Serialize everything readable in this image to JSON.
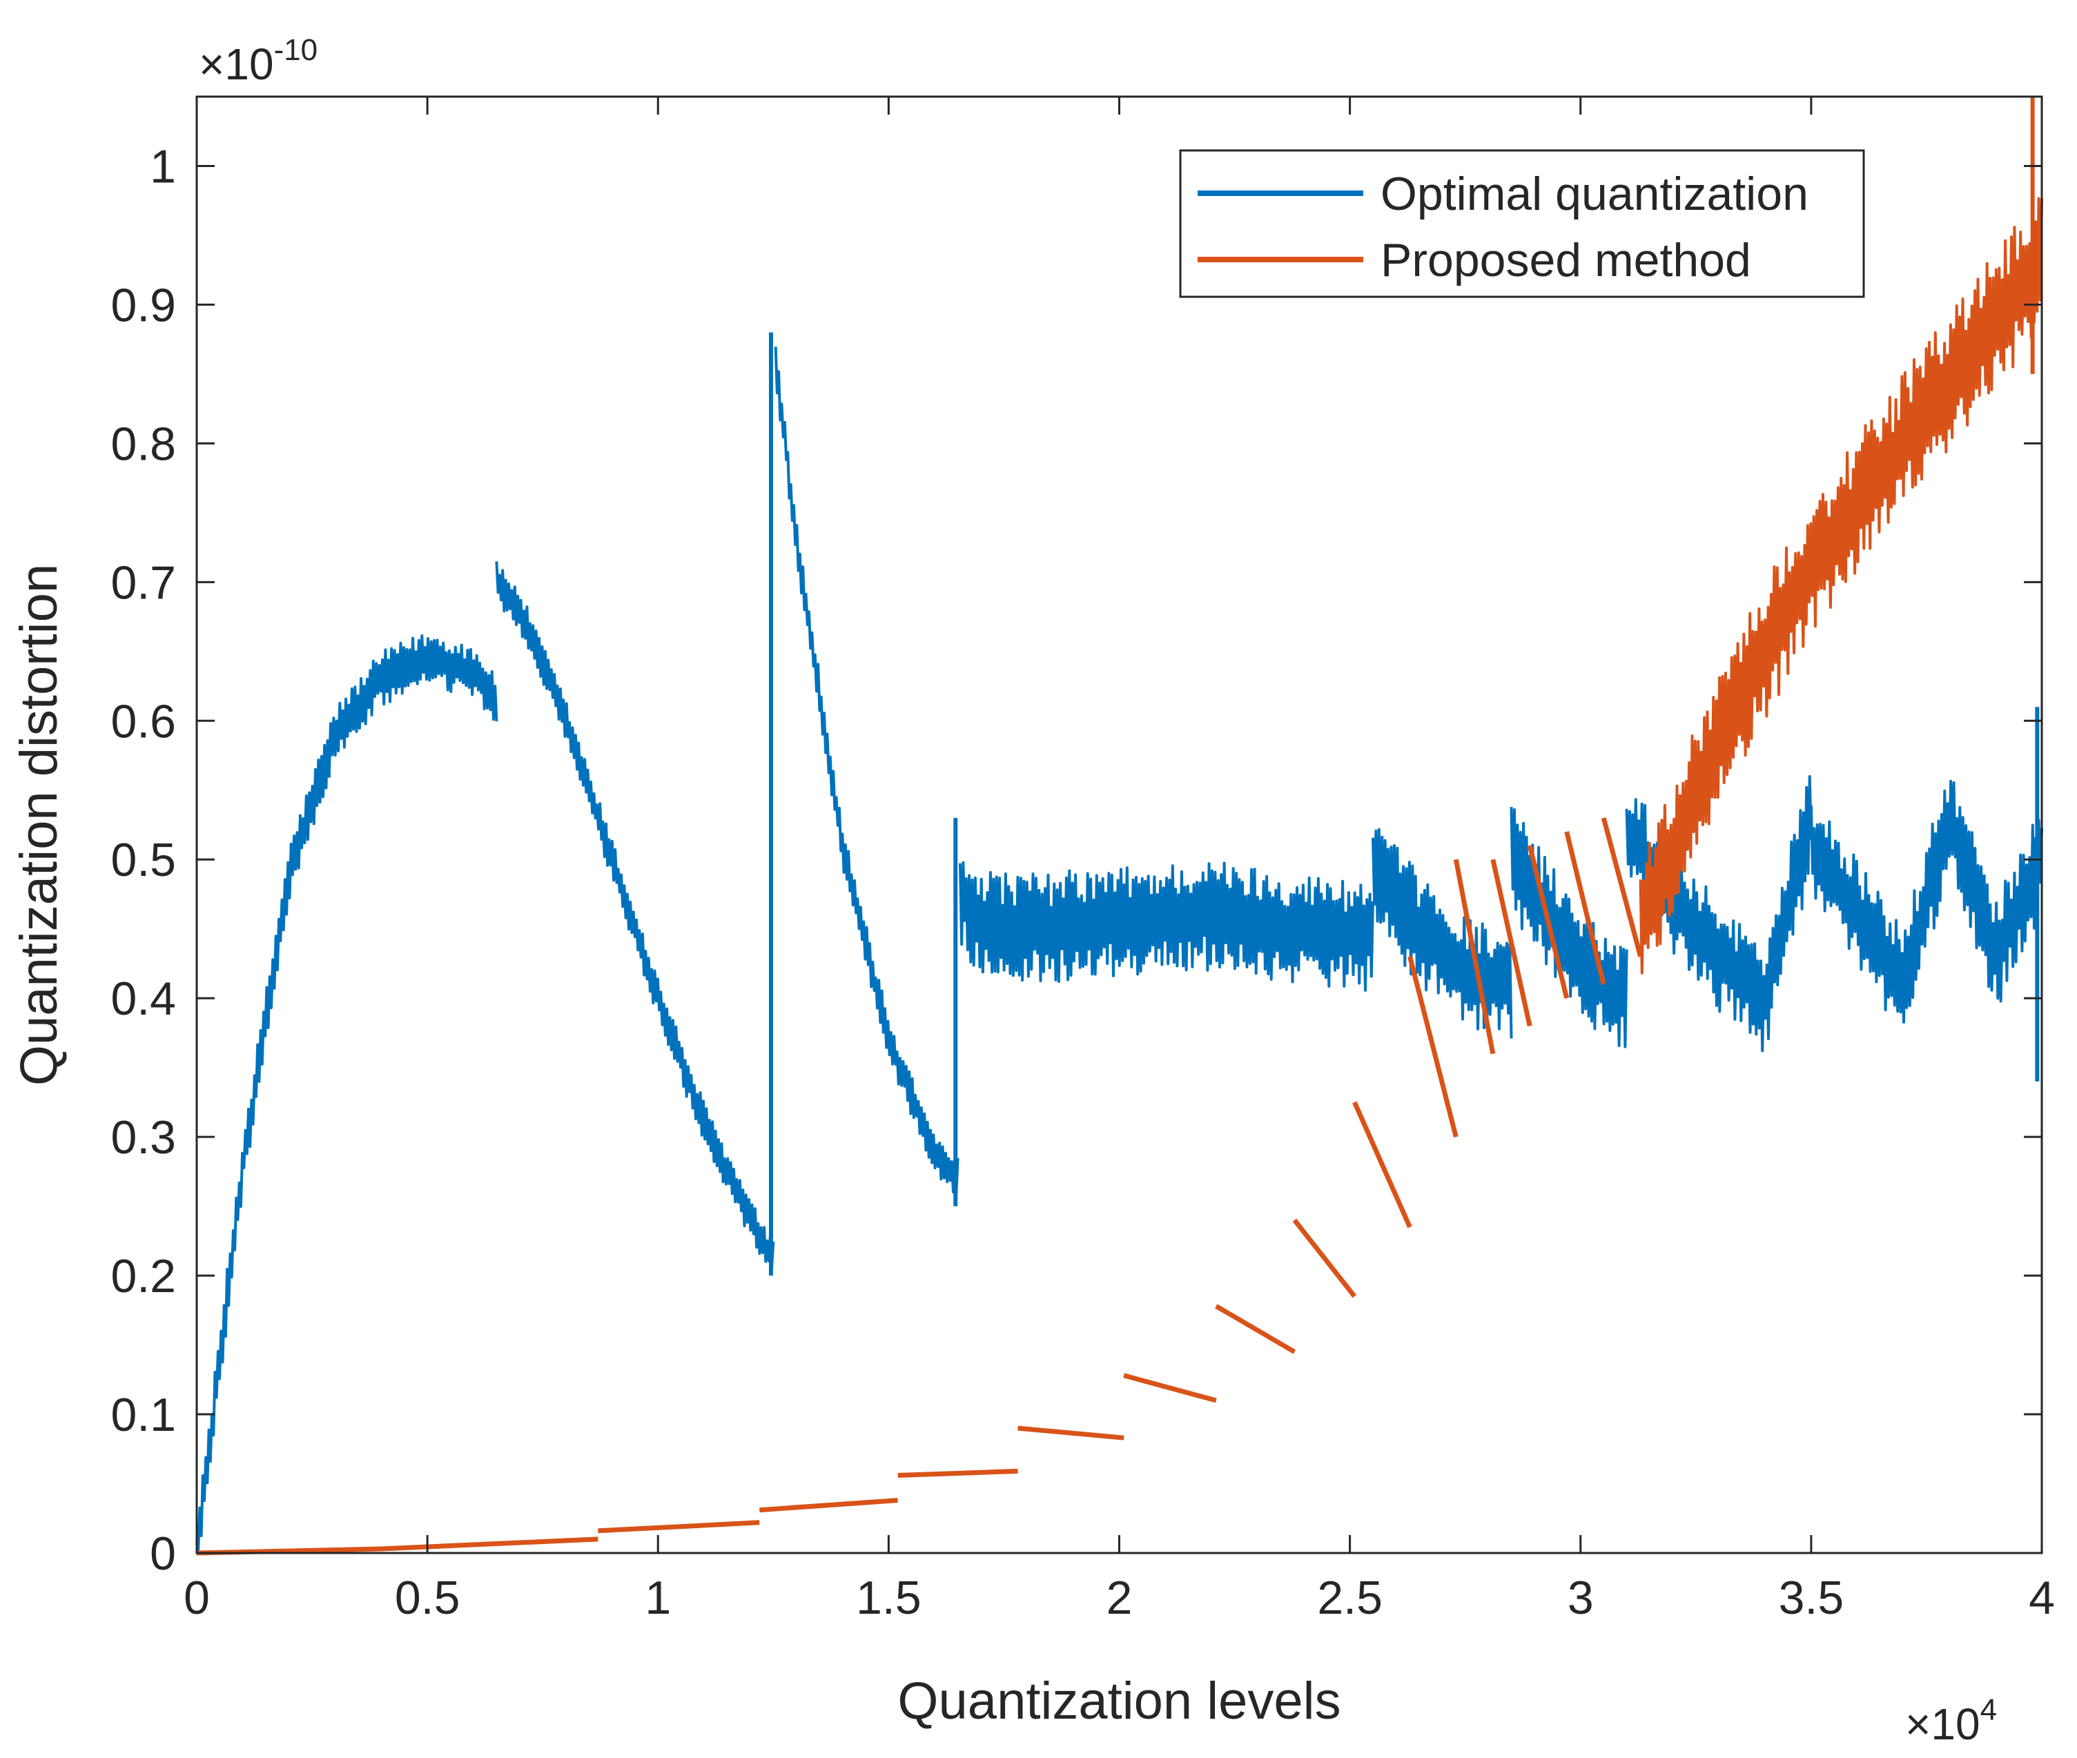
{
  "chart_data": {
    "type": "line",
    "xlabel": "Quantization levels",
    "ylabel": "Quantization distortion",
    "x_scale_label": {
      "base": "×10",
      "exp": "4"
    },
    "y_scale_label": {
      "base": "×10",
      "exp": "-10"
    },
    "xlim": [
      0,
      40000
    ],
    "ylim": [
      0,
      1.05e-10
    ],
    "xticks": [
      0,
      5000,
      10000,
      15000,
      20000,
      25000,
      30000,
      35000,
      40000
    ],
    "xtick_labels": [
      "0",
      "0.5",
      "1",
      "1.5",
      "2",
      "2.5",
      "3",
      "3.5",
      "4"
    ],
    "yticks": [
      0,
      1e-11,
      2e-11,
      3e-11,
      4e-11,
      5e-11,
      6e-11,
      7e-11,
      8e-11,
      9e-11,
      1e-10
    ],
    "ytick_labels": [
      "0",
      "0.1",
      "0.2",
      "0.3",
      "0.4",
      "0.5",
      "0.6",
      "0.7",
      "0.8",
      "0.9",
      "1"
    ],
    "legend_position": "top-right",
    "series": [
      {
        "name": "Optimal quantization",
        "color": "#0072BD",
        "band_segments": [
          {
            "x": [
              0,
              1000,
              2000,
              3000,
              4000,
              5000,
              6000,
              6500
            ],
            "y_mid": [
              0.0,
              2.8e-11,
              4.9e-11,
              5.9e-11,
              6.3e-11,
              6.45e-11,
              6.35e-11,
              6.15e-11
            ],
            "half_width": 2e-12
          },
          {
            "x": [
              6500,
              7000,
              8000,
              9000,
              10000,
              11000,
              12000,
              12500
            ],
            "y_mid": [
              7e-11,
              6.8e-11,
              6e-11,
              5e-11,
              4e-11,
              3.1e-11,
              2.4e-11,
              2.1e-11
            ],
            "half_width": 1.5e-12
          },
          {
            "x": [
              12550,
              13000,
              14000,
              15000,
              16000,
              16500
            ],
            "y_mid": [
              8.6e-11,
              7.3e-11,
              5.1e-11,
              3.7e-11,
              2.9e-11,
              2.7e-11
            ],
            "half_width": 1.5e-12
          },
          {
            "x": [
              16550,
              17000,
              18000,
              20000,
              22000,
              24000,
              25500
            ],
            "y_mid": [
              4.75e-11,
              4.55e-11,
              4.5e-11,
              4.55e-11,
              4.6e-11,
              4.5e-11,
              4.45e-11
            ],
            "half_width": 4e-12
          },
          {
            "x": [
              25500,
              26500,
              27500,
              28500
            ],
            "y_mid": [
              4.9e-11,
              4.5e-11,
              4.2e-11,
              4.1e-11
            ],
            "half_width": 4e-12
          },
          {
            "x": [
              28500,
              29500,
              30500,
              31000
            ],
            "y_mid": [
              5e-11,
              4.5e-11,
              4.1e-11,
              4e-11
            ],
            "half_width": 4e-12
          },
          {
            "x": [
              31000,
              32000,
              33000,
              34000,
              35000
            ],
            "y_mid": [
              5.2e-11,
              4.7e-11,
              4.3e-11,
              4e-11,
              5.3e-11
            ],
            "half_width": 4e-12
          },
          {
            "x": [
              35000,
              36000,
              37000,
              38000,
              39000,
              40000
            ],
            "y_mid": [
              5.1e-11,
              4.6e-11,
              4.1e-11,
              5.3e-11,
              4.3e-11,
              5e-11
            ],
            "half_width": 4e-12
          }
        ],
        "spikes": [
          {
            "x": 12450,
            "y": [
              2e-11,
              8.8e-11
            ]
          },
          {
            "x": 16450,
            "y": [
              2.5e-11,
              5.3e-11
            ]
          },
          {
            "x": 39900,
            "y": [
              3.4e-11,
              6.1e-11
            ]
          }
        ]
      },
      {
        "name": "Proposed method",
        "color": "#D95319",
        "steps": [
          {
            "x": [
              0,
              4000,
              8700
            ],
            "y": [
              0.0,
              3e-13,
              1e-12
            ]
          },
          {
            "x": [
              8700,
              12200
            ],
            "y": [
              1.6e-12,
              2.2e-12
            ]
          },
          {
            "x": [
              12200,
              15200
            ],
            "y": [
              3.1e-12,
              3.8e-12
            ]
          },
          {
            "x": [
              15200,
              17800
            ],
            "y": [
              5.6e-12,
              5.9e-12
            ]
          },
          {
            "x": [
              17800,
              20100
            ],
            "y": [
              9e-12,
              8.3e-12
            ]
          },
          {
            "x": [
              20100,
              22100
            ],
            "y": [
              1.28e-11,
              1.1e-11
            ]
          },
          {
            "x": [
              22100,
              23800
            ],
            "y": [
              1.78e-11,
              1.45e-11
            ]
          },
          {
            "x": [
              23800,
              25100
            ],
            "y": [
              2.4e-11,
              1.85e-11
            ]
          },
          {
            "x": [
              25100,
              26300
            ],
            "y": [
              3.25e-11,
              2.35e-11
            ]
          },
          {
            "x": [
              26300,
              27300
            ],
            "y": [
              4.3e-11,
              3e-11
            ]
          },
          {
            "x": [
              27300,
              28100
            ],
            "y": [
              5e-11,
              3.6e-11
            ]
          },
          {
            "x": [
              28100,
              28900
            ],
            "y": [
              5e-11,
              3.8e-11
            ]
          },
          {
            "x": [
              28900,
              29700
            ],
            "y": [
              5.1e-11,
              4e-11
            ]
          },
          {
            "x": [
              29700,
              30500
            ],
            "y": [
              5.2e-11,
              4.1e-11
            ]
          },
          {
            "x": [
              30500,
              31300
            ],
            "y": [
              5.3e-11,
              4.3e-11
            ]
          }
        ],
        "band_segments": [
          {
            "x": [
              31300,
              33000,
              35000,
              37000,
              39000,
              40000
            ],
            "y_mid": [
              4.5e-11,
              5.9e-11,
              7.1e-11,
              8e-11,
              8.9e-11,
              9.3e-11
            ],
            "half_width": 5e-12
          }
        ],
        "spikes": [
          {
            "x": 39800,
            "y": [
              8.5e-11,
              1.05e-10
            ]
          }
        ]
      }
    ]
  }
}
